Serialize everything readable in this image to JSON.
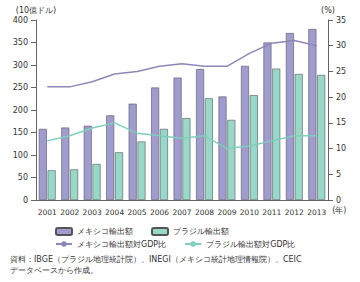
{
  "chart_data": {
    "type": "bar",
    "categories": [
      "2001",
      "2002",
      "2003",
      "2004",
      "2005",
      "2006",
      "2007",
      "2008",
      "2009",
      "2010",
      "2011",
      "2012",
      "2013"
    ],
    "x_label": "(年)",
    "y_label": "(10億ドル)",
    "y2_label": "(%)",
    "ylim": [
      0,
      400
    ],
    "yticks": [
      0,
      50,
      100,
      150,
      200,
      250,
      300,
      350,
      400
    ],
    "y2lim": [
      0,
      35
    ],
    "y2ticks": [
      0,
      5,
      10,
      15,
      20,
      25,
      30,
      35
    ],
    "grid": false,
    "legend": "bottom",
    "series": [
      {
        "name": "メキシコ輸出額",
        "type": "bar",
        "color": "#a09cd0",
        "values": [
          158,
          161,
          165,
          188,
          214,
          250,
          272,
          291,
          230,
          298,
          350,
          371,
          380
        ]
      },
      {
        "name": "ブラジル輸出額",
        "type": "bar",
        "color": "#98d8c8",
        "values": [
          66,
          68,
          80,
          106,
          130,
          158,
          182,
          226,
          178,
          233,
          292,
          280,
          278
        ]
      },
      {
        "name": "メキシコ輸出額対GDP比",
        "type": "line",
        "axis": "y2",
        "color": "#8c88b8",
        "line_style": "solid",
        "values": [
          22,
          22,
          23,
          24.5,
          25,
          26,
          26.5,
          26,
          26,
          28.5,
          30.5,
          31,
          30
        ]
      },
      {
        "name": "ブラジル輸出額対GDP比",
        "type": "line",
        "axis": "y2",
        "color": "#7fcfbd",
        "line_style": "solid",
        "values": [
          11.5,
          12.5,
          14,
          15,
          13,
          12.5,
          12,
          12.5,
          10,
          10.5,
          11.5,
          12.5,
          12.5
        ]
      }
    ],
    "annotations": [
      "資料：IBGE（ブラジル地理統計院）、INEGI（メキシコ統計地理情報院）、CEIC",
      "データベースから作成。"
    ]
  }
}
